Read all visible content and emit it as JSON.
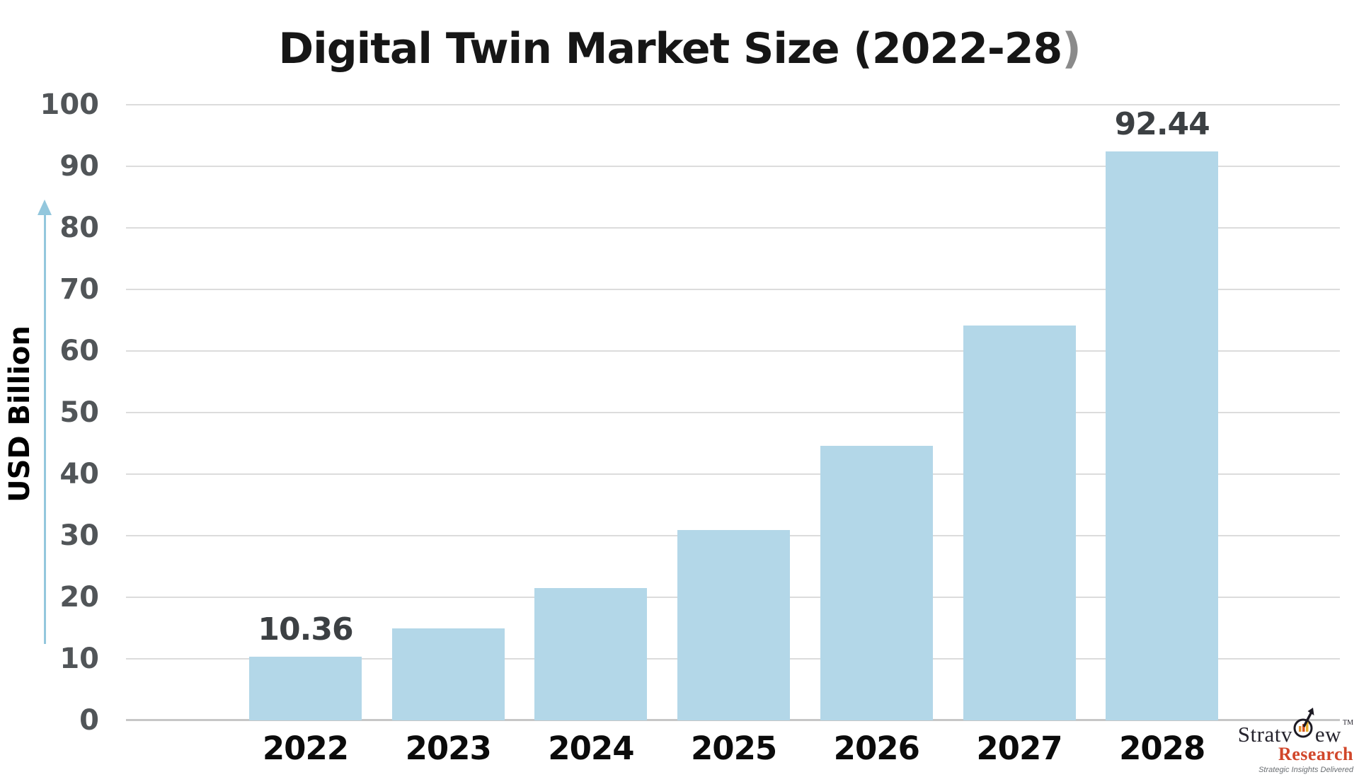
{
  "title": {
    "main": "Digital Twin Market Size (2022-28",
    "paren": ")"
  },
  "y_axis": {
    "label": "USD Billion",
    "ticks": [
      0,
      10,
      20,
      30,
      40,
      50,
      60,
      70,
      80,
      90,
      100
    ]
  },
  "chart_data": {
    "type": "bar",
    "title": "Digital Twin Market Size (2022-28)",
    "categories": [
      "2022",
      "2023",
      "2024",
      "2025",
      "2026",
      "2027",
      "2028"
    ],
    "values": [
      10.36,
      14.9,
      21.5,
      30.9,
      44.6,
      64.1,
      92.44
    ],
    "data_labels": [
      "10.36",
      "",
      "",
      "",
      "",
      "",
      "92.44"
    ],
    "xlabel": "",
    "ylabel": "USD Billion",
    "ylim": [
      0,
      100
    ],
    "grid": true,
    "legend": "none",
    "bar_color": "#b3d7e8",
    "gridline_color": "#dcdcdc",
    "accent_arrow_color": "#93c7dd"
  },
  "logo": {
    "brand_pre": "Stratv",
    "brand_post": "ew",
    "tm": "TM",
    "research": "Research",
    "tagline": "Strategic Insights Delivered"
  }
}
